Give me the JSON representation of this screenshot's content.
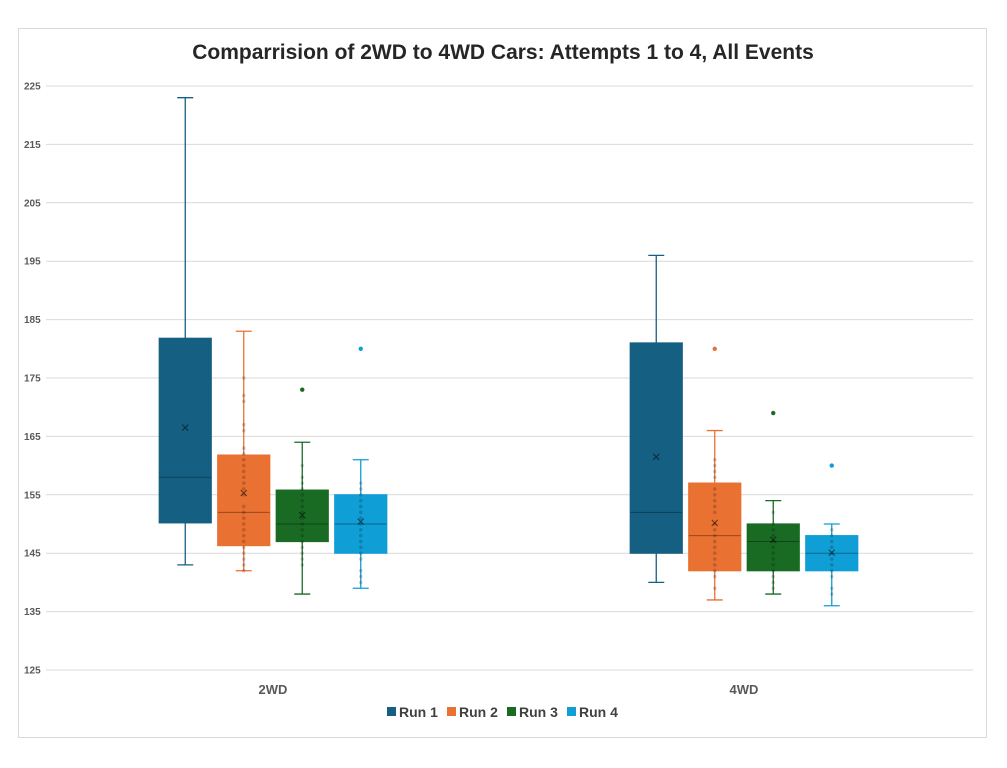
{
  "chart_data": {
    "type": "box",
    "title": "Comparrision of 2WD to 4WD Cars: Attempts 1 to 4, All Events",
    "xlabel": "",
    "ylabel": "",
    "ylim": [
      125,
      225
    ],
    "yticks": [
      "125",
      "135",
      "145",
      "155",
      "165",
      "175",
      "185",
      "195",
      "205",
      "215",
      "225"
    ],
    "categories": [
      "2WD",
      "4WD"
    ],
    "grid": true,
    "legend_position": "bottom",
    "series": [
      {
        "name": "Run 1",
        "color": "#156082",
        "boxes": [
          {
            "category": "2WD",
            "min": 143,
            "q1": 150.2,
            "median": 158,
            "q3": 181.8,
            "max": 223,
            "mean": 166.5,
            "points": [],
            "outliers": []
          },
          {
            "category": "4WD",
            "min": 140,
            "q1": 145,
            "median": 152,
            "q3": 181,
            "max": 196,
            "mean": 161.5,
            "points": [],
            "outliers": []
          }
        ]
      },
      {
        "name": "Run 2",
        "color": "#E97132",
        "boxes": [
          {
            "category": "2WD",
            "min": 142,
            "q1": 146.3,
            "median": 152,
            "q3": 161.8,
            "max": 183,
            "mean": 155.3,
            "points": [
              142,
              143,
              144,
              145,
              146,
              147,
              148,
              149,
              150,
              151,
              152,
              153,
              155,
              156,
              157,
              158,
              159,
              160,
              161,
              162,
              163,
              166,
              167,
              171,
              172,
              175
            ],
            "outliers": []
          },
          {
            "category": "4WD",
            "min": 137,
            "q1": 142,
            "median": 148,
            "q3": 157,
            "max": 166,
            "mean": 150.2,
            "points": [
              139,
              141,
              142,
              143,
              144,
              145,
              146,
              147,
              148,
              149,
              150,
              152,
              153,
              154,
              155,
              156,
              158,
              159,
              160,
              161
            ],
            "outliers": [
              180
            ]
          }
        ]
      },
      {
        "name": "Run 3",
        "color": "#196B24",
        "boxes": [
          {
            "category": "2WD",
            "min": 138,
            "q1": 147,
            "median": 150,
            "q3": 155.8,
            "max": 164,
            "mean": 151.5,
            "points": [
              143,
              144,
              145,
              146,
              147,
              148,
              149,
              150,
              151,
              152,
              153,
              154,
              155,
              156,
              157,
              158,
              160
            ],
            "outliers": [
              173
            ]
          },
          {
            "category": "4WD",
            "min": 138,
            "q1": 142,
            "median": 147,
            "q3": 150,
            "max": 154,
            "mean": 147.3,
            "points": [
              139,
              140,
              141,
              142,
              143,
              144,
              145,
              146,
              147,
              148,
              149,
              150,
              152
            ],
            "outliers": [
              169
            ]
          }
        ]
      },
      {
        "name": "Run 4",
        "color": "#0F9ED5",
        "boxes": [
          {
            "category": "2WD",
            "min": 139,
            "q1": 145,
            "median": 150,
            "q3": 155,
            "max": 161,
            "mean": 150.4,
            "points": [
              140,
              141,
              142,
              144,
              145,
              146,
              147,
              148,
              149,
              150,
              151,
              152,
              153,
              154,
              155,
              156,
              157
            ],
            "outliers": [
              180
            ]
          },
          {
            "category": "4WD",
            "min": 136,
            "q1": 142,
            "median": 145,
            "q3": 148,
            "max": 150,
            "mean": 145.1,
            "points": [
              138,
              139,
              141,
              142,
              143,
              144,
              145,
              146,
              147,
              148,
              149
            ],
            "outliers": [
              160
            ]
          }
        ]
      }
    ]
  }
}
